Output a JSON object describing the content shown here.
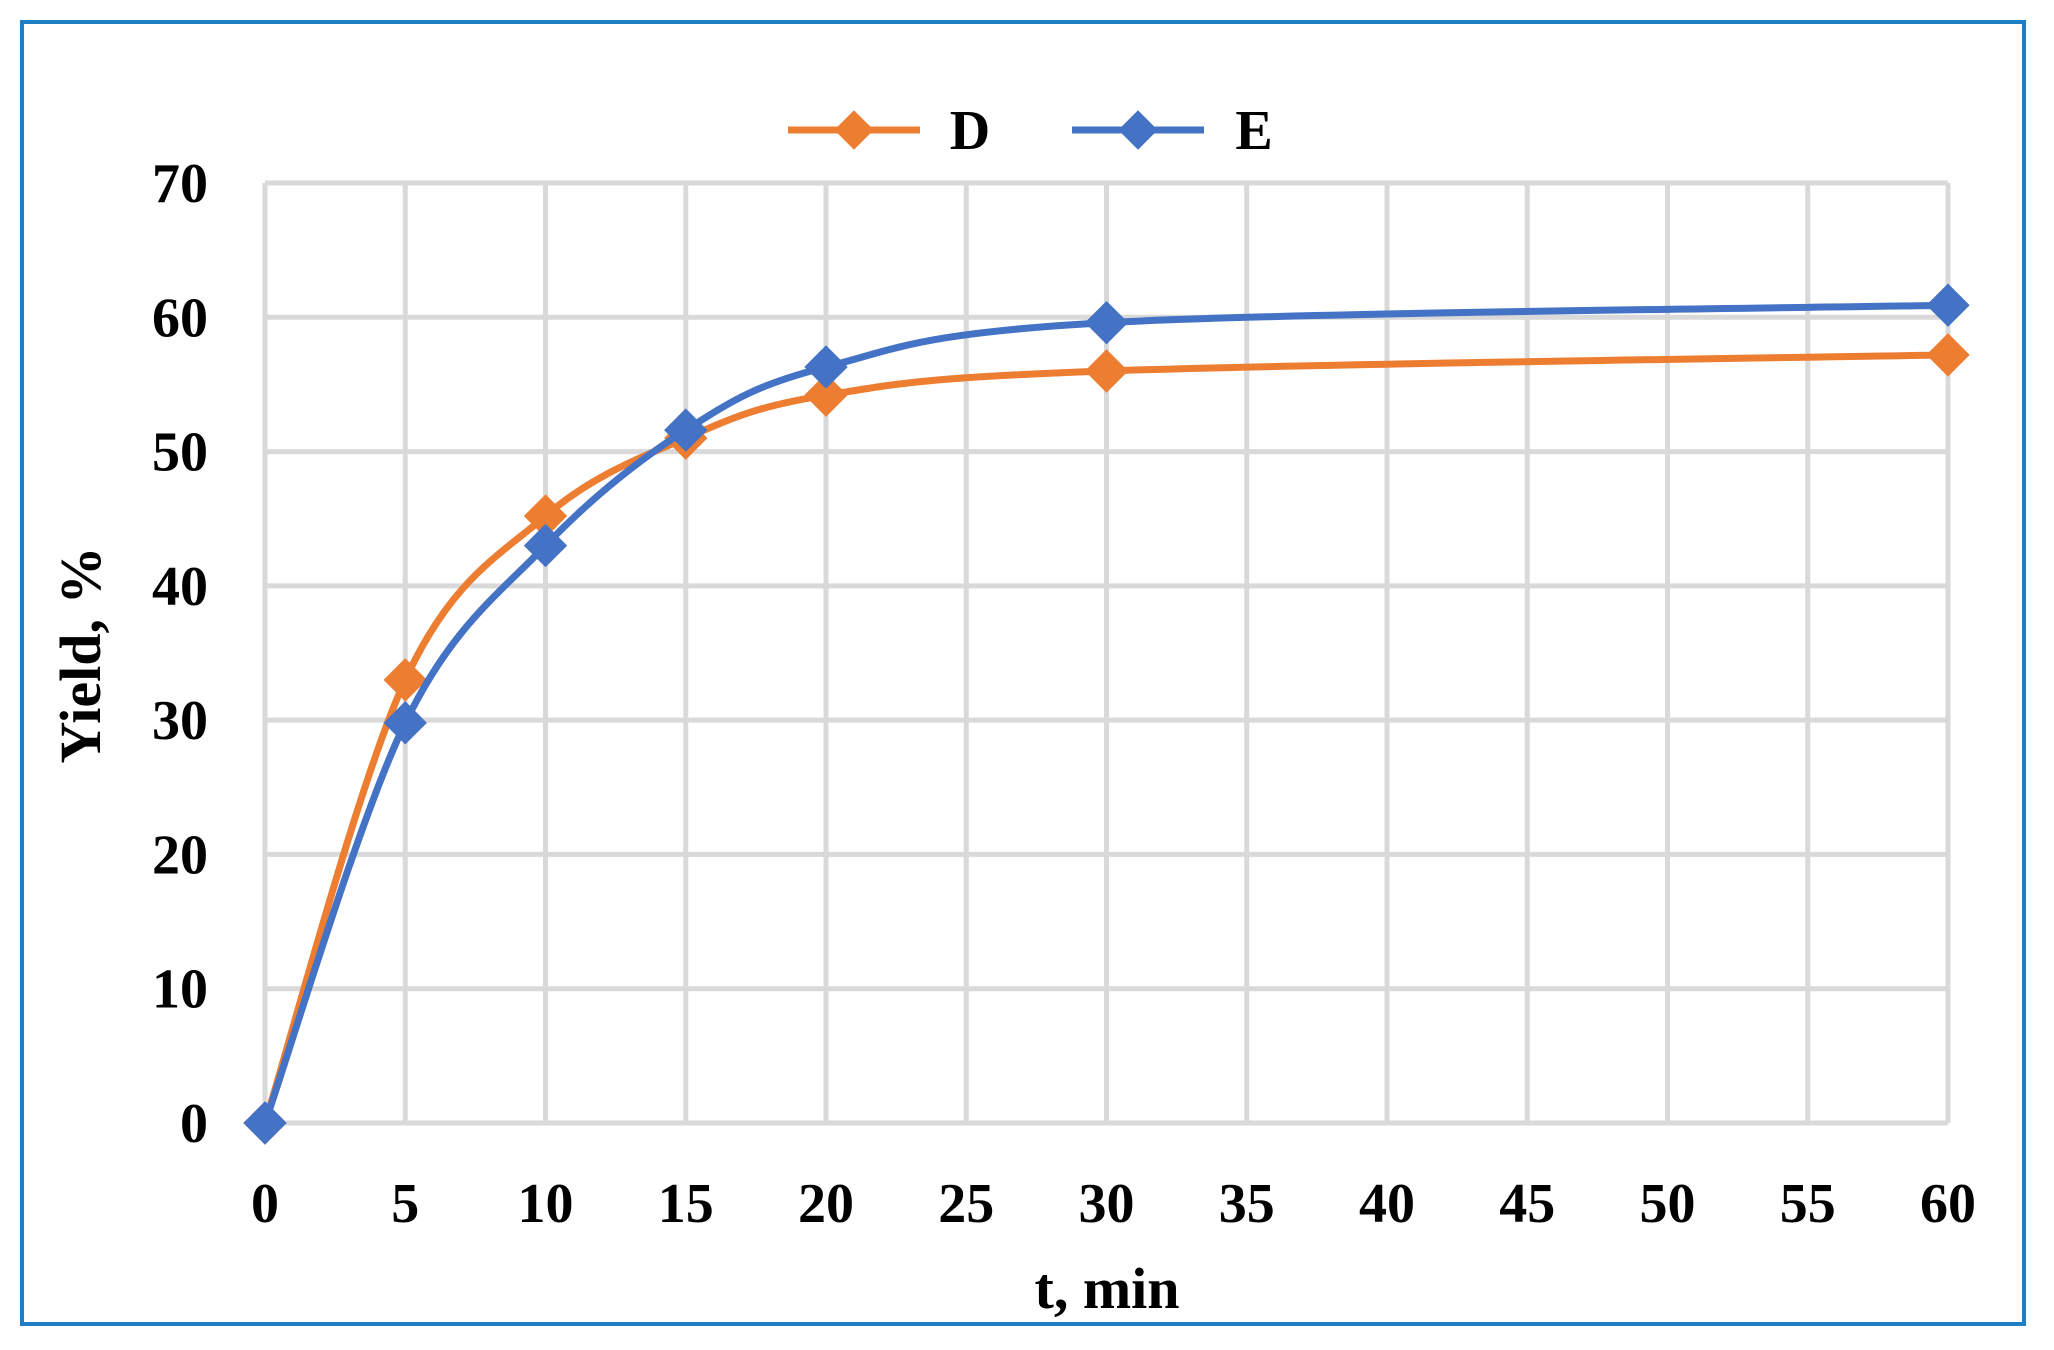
{
  "chart_data": {
    "type": "line",
    "xlabel": "t, min",
    "ylabel": "Yield, %",
    "x_categories": [
      "0",
      "5",
      "10",
      "15",
      "20",
      "25",
      "30",
      "35",
      "40",
      "45",
      "50",
      "55",
      "60"
    ],
    "ylim": [
      0,
      70
    ],
    "y_ticks": [
      "0",
      "10",
      "20",
      "30",
      "40",
      "50",
      "60",
      "70"
    ],
    "grid": true,
    "legend_position": "top-center",
    "series": [
      {
        "name": "D",
        "color": "#ed7d31",
        "marker": "diamond",
        "points": [
          {
            "x": "0",
            "y": 0
          },
          {
            "x": "5",
            "y": 33
          },
          {
            "x": "10",
            "y": 45.2
          },
          {
            "x": "15",
            "y": 51
          },
          {
            "x": "20",
            "y": 54.2
          },
          {
            "x": "30",
            "y": 56
          },
          {
            "x": "60",
            "y": 57.2
          }
        ]
      },
      {
        "name": "E",
        "color": "#4472c4",
        "marker": "diamond",
        "points": [
          {
            "x": "0",
            "y": 0
          },
          {
            "x": "5",
            "y": 29.8
          },
          {
            "x": "10",
            "y": 43
          },
          {
            "x": "15",
            "y": 51.6
          },
          {
            "x": "20",
            "y": 56.3
          },
          {
            "x": "30",
            "y": 59.6
          },
          {
            "x": "60",
            "y": 60.9
          }
        ]
      }
    ]
  }
}
